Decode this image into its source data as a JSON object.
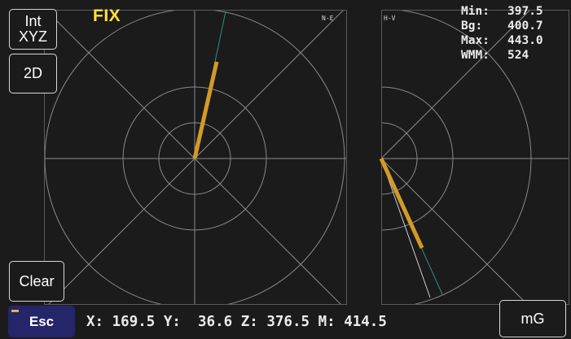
{
  "fix_label": "FIX",
  "buttons": {
    "int_xyz": [
      "Int",
      "XYZ"
    ],
    "mode_2d": "2D",
    "clear": "Clear",
    "esc": "Esc",
    "unit": "mG"
  },
  "views": {
    "north_east": {
      "label": "N-E"
    },
    "horizontal_vertical": {
      "label": "H-V"
    }
  },
  "stats": [
    {
      "key": "Min:",
      "value": "397.5"
    },
    {
      "key": "Bg:",
      "value": "400.7"
    },
    {
      "key": "Max:",
      "value": "443.0"
    },
    {
      "key": "WMM:",
      "value": "524"
    }
  ],
  "readout": {
    "x_label": "X:",
    "x": "169.5",
    "y_label": "Y:",
    "y": "36.6",
    "z_label": "Z:",
    "z": "376.5",
    "m_label": "M:",
    "m": "414.5"
  },
  "colors": {
    "background": "#1b1b1b",
    "grid": "#8a8a8a",
    "vector": "#d49a26",
    "reference_line": "#2f8f80",
    "fix_label": "#ffe23a",
    "esc_button": "#25256a"
  }
}
